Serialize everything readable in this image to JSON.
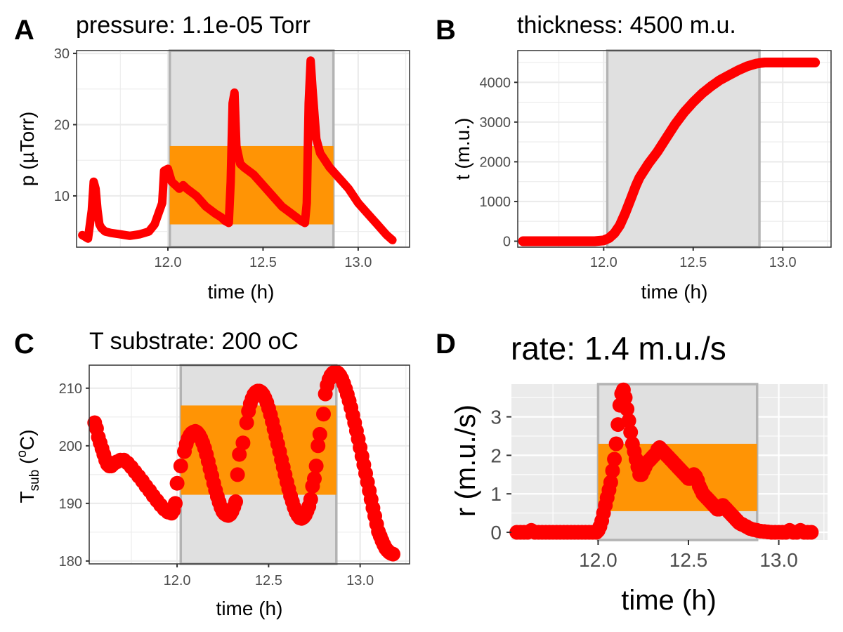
{
  "colors": {
    "series": "#ff0000",
    "band": "#ff9405",
    "shade": "#e0e0e0",
    "shade_border": "#b3b3b3",
    "grid": "#ebebeb",
    "panel_bg_D": "#ebebeb"
  },
  "chart_data": [
    {
      "id": "A",
      "type": "line",
      "letter": "A",
      "title": "pressure: 1.1e-05 Torr",
      "xlabel": "time (h)",
      "ylabel": "p (µTorr)",
      "xlim": [
        11.52,
        13.27
      ],
      "ylim": [
        2.8,
        30.4
      ],
      "xticks": [
        12.0,
        12.5,
        13.0
      ],
      "xtick_labels": [
        "12.0",
        "12.5",
        "13.0"
      ],
      "yticks": [
        10,
        20,
        30
      ],
      "ytick_labels": [
        "10",
        "20",
        "30"
      ],
      "shade_x": [
        12.01,
        12.87
      ],
      "band_x": [
        12.01,
        12.87
      ],
      "band_y": [
        6,
        17
      ],
      "x": [
        11.55,
        11.58,
        11.6,
        11.61,
        11.62,
        11.63,
        11.64,
        11.65,
        11.67,
        11.7,
        11.75,
        11.8,
        11.85,
        11.9,
        11.93,
        11.95,
        11.97,
        11.98,
        12.0,
        12.02,
        12.04,
        12.06,
        12.08,
        12.1,
        12.15,
        12.2,
        12.25,
        12.28,
        12.3,
        12.32,
        12.33,
        12.34,
        12.35,
        12.36,
        12.38,
        12.4,
        12.45,
        12.5,
        12.55,
        12.6,
        12.65,
        12.7,
        12.72,
        12.73,
        12.74,
        12.75,
        12.76,
        12.78,
        12.8,
        12.85,
        12.9,
        12.95,
        13.0,
        13.05,
        13.1,
        13.15,
        13.18
      ],
      "y": [
        4.5,
        4.0,
        8.0,
        12.0,
        11.0,
        8.0,
        6.0,
        5.5,
        5.0,
        4.8,
        4.6,
        4.4,
        4.6,
        5.0,
        6.0,
        7.5,
        9.0,
        13.5,
        13.8,
        12.0,
        11.5,
        11.0,
        11.5,
        11.0,
        10.0,
        8.5,
        7.5,
        7.0,
        6.5,
        6.2,
        12.0,
        23.0,
        24.5,
        17.0,
        14.5,
        14.0,
        13.0,
        11.5,
        10.0,
        8.5,
        7.5,
        6.5,
        6.2,
        9.0,
        23.0,
        29.0,
        25.0,
        18.0,
        16.0,
        14.0,
        12.5,
        11.0,
        9.0,
        7.5,
        6.0,
        4.5,
        3.8
      ]
    },
    {
      "id": "B",
      "type": "line",
      "letter": "B",
      "title": "thickness: 4500 m.u.",
      "xlabel": "time (h)",
      "ylabel": "t (m.u.)",
      "xlim": [
        11.52,
        13.27
      ],
      "ylim": [
        -150,
        4800
      ],
      "xticks": [
        12.0,
        12.5,
        13.0
      ],
      "xtick_labels": [
        "12.0",
        "12.5",
        "13.0"
      ],
      "yticks": [
        0,
        1000,
        2000,
        3000,
        4000
      ],
      "ytick_labels": [
        "0",
        "1000",
        "2000",
        "3000",
        "4000"
      ],
      "shade_x": [
        12.02,
        12.87
      ],
      "x": [
        11.55,
        11.7,
        11.85,
        11.95,
        12.0,
        12.03,
        12.06,
        12.09,
        12.12,
        12.15,
        12.18,
        12.2,
        12.25,
        12.3,
        12.35,
        12.4,
        12.45,
        12.5,
        12.55,
        12.6,
        12.65,
        12.7,
        12.75,
        12.8,
        12.85,
        12.88,
        12.9,
        13.0,
        13.1,
        13.18
      ],
      "y": [
        0,
        0,
        0,
        0,
        20,
        80,
        200,
        400,
        700,
        1050,
        1400,
        1600,
        1950,
        2250,
        2600,
        2950,
        3250,
        3500,
        3720,
        3900,
        4060,
        4180,
        4300,
        4400,
        4470,
        4490,
        4500,
        4500,
        4500,
        4500
      ]
    },
    {
      "id": "C",
      "type": "scatter",
      "letter": "C",
      "title": "T substrate: 200 oC",
      "xlabel": "time (h)",
      "ylabel": "T",
      "ylabel_sub": "sub",
      "ylabel_tail": " (",
      "ylabel_sup": "o",
      "ylabel_unit": "C)",
      "xlim": [
        11.52,
        13.27
      ],
      "ylim": [
        179.5,
        214
      ],
      "xticks": [
        12.0,
        12.5,
        13.0
      ],
      "xtick_labels": [
        "12.0",
        "12.5",
        "13.0"
      ],
      "yticks": [
        180,
        190,
        200,
        210
      ],
      "ytick_labels": [
        "180",
        "190",
        "200",
        "210"
      ],
      "shade_x": [
        12.02,
        12.87
      ],
      "band_x": [
        12.02,
        12.87
      ],
      "band_y": [
        191.5,
        207
      ],
      "x": [
        11.55,
        11.56,
        11.57,
        11.58,
        11.59,
        11.6,
        11.61,
        11.62,
        11.63,
        11.64,
        11.65,
        11.67,
        11.69,
        11.71,
        11.73,
        11.75,
        11.77,
        11.79,
        11.81,
        11.83,
        11.85,
        11.87,
        11.89,
        11.91,
        11.93,
        11.95,
        11.97,
        11.98,
        11.99,
        12.0,
        12.02,
        12.04,
        12.05,
        12.06,
        12.07,
        12.08,
        12.09,
        12.1,
        12.11,
        12.12,
        12.13,
        12.14,
        12.15,
        12.16,
        12.17,
        12.18,
        12.19,
        12.2,
        12.21,
        12.22,
        12.23,
        12.24,
        12.25,
        12.26,
        12.27,
        12.28,
        12.29,
        12.3,
        12.31,
        12.32,
        12.33,
        12.34,
        12.36,
        12.38,
        12.39,
        12.4,
        12.41,
        12.42,
        12.43,
        12.44,
        12.45,
        12.46,
        12.47,
        12.48,
        12.49,
        12.5,
        12.51,
        12.52,
        12.53,
        12.54,
        12.55,
        12.56,
        12.57,
        12.58,
        12.59,
        12.6,
        12.61,
        12.62,
        12.63,
        12.64,
        12.65,
        12.66,
        12.67,
        12.68,
        12.69,
        12.7,
        12.71,
        12.72,
        12.73,
        12.74,
        12.75,
        12.76,
        12.77,
        12.78,
        12.8,
        12.81,
        12.82,
        12.83,
        12.84,
        12.85,
        12.86,
        12.87,
        12.88,
        12.89,
        12.9,
        12.91,
        12.92,
        12.93,
        12.94,
        12.95,
        12.96,
        12.97,
        12.98,
        12.99,
        13.0,
        13.01,
        13.02,
        13.03,
        13.04,
        13.05,
        13.06,
        13.07,
        13.08,
        13.09,
        13.1,
        13.11,
        13.12,
        13.13,
        13.14,
        13.15,
        13.16,
        13.17,
        13.18
      ],
      "y": [
        204.0,
        203.0,
        201.5,
        200.5,
        199.5,
        198.5,
        197.5,
        196.8,
        196.5,
        196.5,
        196.8,
        197.2,
        197.5,
        197.5,
        197.0,
        196.3,
        195.5,
        194.7,
        193.9,
        193.0,
        192.2,
        191.3,
        190.5,
        189.7,
        189.0,
        188.5,
        188.3,
        188.8,
        190.0,
        193.5,
        196.5,
        199.0,
        200.3,
        201.2,
        201.8,
        202.2,
        202.4,
        202.5,
        202.3,
        201.9,
        201.3,
        200.5,
        199.6,
        198.5,
        197.3,
        196.0,
        194.8,
        193.5,
        192.3,
        191.2,
        190.2,
        189.3,
        188.6,
        188.2,
        188.0,
        187.9,
        188.1,
        188.6,
        189.4,
        190.3,
        195.0,
        198.5,
        200.5,
        204.0,
        206.0,
        207.3,
        208.2,
        208.9,
        209.3,
        209.5,
        209.5,
        209.3,
        208.9,
        208.3,
        207.5,
        206.5,
        205.4,
        204.2,
        202.9,
        201.6,
        200.3,
        199.0,
        197.6,
        196.3,
        195.0,
        193.7,
        192.5,
        191.3,
        190.3,
        189.3,
        188.5,
        187.9,
        187.5,
        187.4,
        187.6,
        188.0,
        188.7,
        189.5,
        190.7,
        193.0,
        194.3,
        196.5,
        200.0,
        202.0,
        205.5,
        209.0,
        210.5,
        211.5,
        212.2,
        212.6,
        212.8,
        212.8,
        212.6,
        212.2,
        211.6,
        210.8,
        209.9,
        208.9,
        207.8,
        206.6,
        205.3,
        204.0,
        202.6,
        201.2,
        199.7,
        198.2,
        196.7,
        195.2,
        193.7,
        192.2,
        190.7,
        189.2,
        187.8,
        186.4,
        185.1,
        184.3,
        183.5,
        182.8,
        182.2,
        181.8,
        181.5,
        181.3,
        181.2
      ]
    },
    {
      "id": "D",
      "type": "scatter",
      "letter": "D",
      "title": "rate: 1.4 m.u./s",
      "xlabel": "time (h)",
      "ylabel": "r (m.u./s)",
      "xlim": [
        11.52,
        13.27
      ],
      "ylim": [
        -0.2,
        3.85
      ],
      "xticks": [
        12.0,
        12.5,
        13.0
      ],
      "xtick_labels": [
        "12.0",
        "12.5",
        "13.0"
      ],
      "yticks": [
        0,
        1,
        2,
        3
      ],
      "ytick_labels": [
        "0",
        "1",
        "2",
        "3"
      ],
      "shade_x": [
        12.0,
        12.88
      ],
      "band_x": [
        12.0,
        12.88
      ],
      "band_y": [
        0.55,
        2.3
      ],
      "x": [
        11.55,
        11.57,
        11.59,
        11.61,
        11.63,
        11.65,
        11.67,
        11.69,
        11.71,
        11.73,
        11.75,
        11.77,
        11.79,
        11.81,
        11.83,
        11.85,
        11.87,
        11.89,
        11.91,
        11.93,
        11.95,
        11.97,
        11.99,
        12.0,
        12.01,
        12.02,
        12.03,
        12.04,
        12.05,
        12.06,
        12.07,
        12.08,
        12.09,
        12.1,
        12.11,
        12.12,
        12.13,
        12.14,
        12.15,
        12.16,
        12.17,
        12.18,
        12.19,
        12.2,
        12.21,
        12.22,
        12.23,
        12.24,
        12.25,
        12.26,
        12.27,
        12.28,
        12.29,
        12.3,
        12.31,
        12.32,
        12.33,
        12.34,
        12.35,
        12.36,
        12.37,
        12.38,
        12.39,
        12.4,
        12.41,
        12.42,
        12.43,
        12.44,
        12.45,
        12.46,
        12.47,
        12.48,
        12.49,
        12.5,
        12.51,
        12.52,
        12.53,
        12.54,
        12.55,
        12.56,
        12.57,
        12.58,
        12.59,
        12.6,
        12.61,
        12.62,
        12.63,
        12.64,
        12.65,
        12.66,
        12.67,
        12.68,
        12.69,
        12.7,
        12.71,
        12.72,
        12.73,
        12.74,
        12.75,
        12.76,
        12.77,
        12.78,
        12.79,
        12.8,
        12.82,
        12.84,
        12.86,
        12.88,
        12.9,
        12.92,
        12.94,
        12.96,
        12.98,
        13.0,
        13.02,
        13.04,
        13.06,
        13.08,
        13.1,
        13.12,
        13.14,
        13.16,
        13.18
      ],
      "y": [
        0.0,
        0.0,
        0.0,
        0.0,
        0.05,
        0.0,
        0.0,
        0.0,
        0.0,
        0.0,
        0.0,
        0.0,
        0.0,
        0.0,
        0.0,
        0.0,
        0.0,
        0.0,
        0.0,
        0.0,
        0.0,
        0.0,
        0.0,
        0.05,
        0.15,
        0.3,
        0.5,
        0.7,
        0.9,
        1.1,
        1.3,
        1.6,
        1.9,
        2.3,
        2.8,
        3.3,
        3.6,
        3.7,
        3.5,
        3.2,
        2.9,
        2.6,
        2.3,
        2.1,
        1.9,
        1.7,
        1.5,
        1.5,
        1.6,
        1.7,
        1.8,
        1.85,
        1.9,
        1.95,
        2.0,
        2.05,
        2.15,
        2.2,
        2.15,
        2.1,
        2.05,
        2.0,
        1.95,
        1.9,
        1.85,
        1.8,
        1.75,
        1.7,
        1.65,
        1.6,
        1.55,
        1.5,
        1.45,
        1.4,
        1.4,
        1.45,
        1.5,
        1.45,
        1.35,
        1.2,
        1.1,
        1.0,
        0.95,
        0.9,
        0.85,
        0.8,
        0.75,
        0.7,
        0.65,
        0.6,
        0.6,
        0.65,
        0.7,
        0.65,
        0.6,
        0.55,
        0.5,
        0.45,
        0.4,
        0.35,
        0.3,
        0.25,
        0.22,
        0.2,
        0.15,
        0.1,
        0.07,
        0.05,
        0.03,
        0.02,
        0.01,
        0.0,
        0.0,
        0.0,
        0.0,
        0.0,
        0.05,
        0.0,
        0.0,
        0.05,
        0.0,
        0.0,
        0.0
      ]
    }
  ]
}
